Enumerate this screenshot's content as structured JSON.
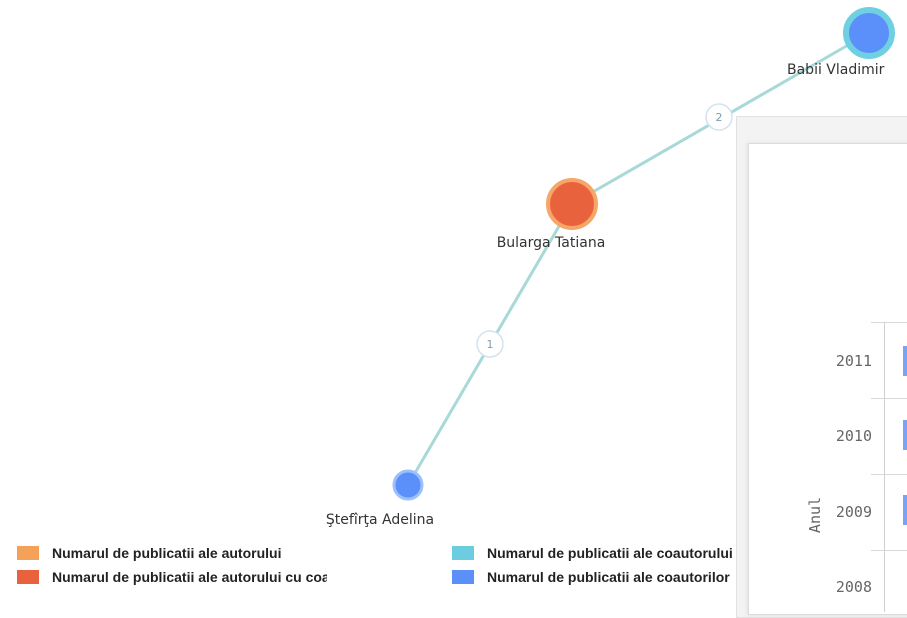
{
  "graph": {
    "nodes": [
      {
        "id": "babii",
        "label": "Babii Vladimir",
        "fill": "#5b8ff9",
        "stroke": "#6fd0e2"
      },
      {
        "id": "bularga",
        "label": "Bularga Tatiana",
        "fill": "#e8623d",
        "stroke": "#f6a668"
      },
      {
        "id": "stefirta",
        "label": "Ştefîrţa Adelina",
        "fill": "#5b8ff9",
        "stroke": "#9cc0fb"
      }
    ],
    "edges": [
      {
        "from": "bularga",
        "to": "babii",
        "label": "2"
      },
      {
        "from": "stefirta",
        "to": "bularga",
        "label": "1"
      }
    ],
    "edge_color": "#a7d9d9"
  },
  "panel": {
    "axis_title": "Anul",
    "years": [
      "2011",
      "2010",
      "2009",
      "2008"
    ]
  },
  "legend": [
    {
      "text": "Numarul de publicatii ale autorului",
      "color": "#f5a15a"
    },
    {
      "text": "Numarul de publicatii ale autorului cu coautori",
      "color": "#e8623d"
    },
    {
      "text": "Numarul de publicatii ale coautorului",
      "color": "#6dcde0"
    },
    {
      "text": "Numarul de publicatii ale coautorilor",
      "color": "#5b8ff9"
    }
  ]
}
